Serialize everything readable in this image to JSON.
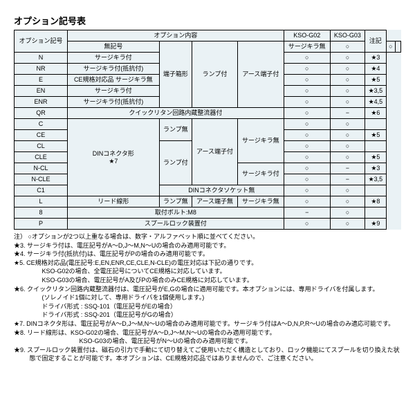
{
  "title": "オプション記号表",
  "headers": {
    "code": "オプション記号",
    "content": "オプション内容",
    "g02": "KSO-G02",
    "g03": "KSO-G03",
    "note": "注記"
  },
  "rows": [
    {
      "code": "無記号",
      "c1": "",
      "c2": "",
      "c3": "",
      "c4": "サージキラ無",
      "g02": "○",
      "g03": "○",
      "note": ""
    },
    {
      "code": "N",
      "c1": "端子箱形",
      "c2": "ランプ付",
      "c3": "アース端子付",
      "c4": "サージキラ付",
      "g02": "○",
      "g03": "○",
      "note": "★3"
    },
    {
      "code": "NR",
      "c1": "",
      "c2": "",
      "c3": "",
      "c4": "サージキラ付(抵抗付)",
      "g02": "○",
      "g03": "○",
      "note": "★4"
    },
    {
      "code": "E",
      "c1": "",
      "c2": "",
      "c3": "",
      "c4": "CE規格対応品 サージキラ無",
      "g02": "○",
      "g03": "○",
      "note": "★5"
    },
    {
      "code": "EN",
      "c1": "",
      "c2": "",
      "c3": "",
      "c4": "サージキラ付",
      "g02": "○",
      "g03": "○",
      "note": "★3,5"
    },
    {
      "code": "ENR",
      "c1": "",
      "c2": "",
      "c3": "",
      "c4": "サージキラ付(抵抗付)",
      "g02": "○",
      "g03": "○",
      "note": "★4,5"
    },
    {
      "code": "QR",
      "c1": "",
      "c2": "",
      "c3": "クイックリタン回路内蔵整流器付",
      "c4": "",
      "g02": "○",
      "g03": "−",
      "note": "★6"
    },
    {
      "code": "C",
      "c1": "DINコネクタ形\n★7",
      "c2": "ランプ無",
      "c3": "アース端子付",
      "c4": "サージキラ無",
      "g02": "○",
      "g03": "○",
      "note": ""
    },
    {
      "code": "CE",
      "c1": "",
      "c2": "",
      "c3": "",
      "c4": "CE規格対応品",
      "g02": "○",
      "g03": "○",
      "note": "★5"
    },
    {
      "code": "CL",
      "c1": "",
      "c2": "ランプ付",
      "c3": "",
      "c4": "",
      "g02": "○",
      "g03": "○",
      "note": ""
    },
    {
      "code": "CLE",
      "c1": "",
      "c2": "",
      "c3": "",
      "c4": "CE規格対応品",
      "g02": "○",
      "g03": "○",
      "note": "★5"
    },
    {
      "code": "N-CL",
      "c1": "",
      "c2": "",
      "c3": "",
      "c4": "サージキラ付",
      "g02": "○",
      "g03": "−",
      "note": "★3"
    },
    {
      "code": "N-CLE",
      "c1": "",
      "c2": "",
      "c3": "",
      "c4": "",
      "g02": "○",
      "g03": "−",
      "note": "★3,5"
    },
    {
      "code": "C1",
      "c1": "",
      "c2": "",
      "c3": "DINコネクタソケット無",
      "c4": "",
      "g02": "○",
      "g03": "○",
      "note": ""
    },
    {
      "code": "L",
      "c1": "リード線形",
      "c2": "ランプ無",
      "c3": "アース端子無",
      "c4": "サージキラ無",
      "g02": "○",
      "g03": "○",
      "note": "★8"
    },
    {
      "code": "8",
      "c1": "",
      "c2": "",
      "c3": "取付ボルト:M8",
      "c4": "",
      "g02": "−",
      "g03": "○",
      "note": ""
    },
    {
      "code": "P",
      "c1": "",
      "c2": "",
      "c3": "スプールロック装置付",
      "c4": "",
      "g02": "○",
      "g03": "○",
      "note": "★9"
    }
  ],
  "notes": [
    "注） ○オプションが2つ以上重なる場合は、数字・アルファベット順に並べてください。",
    "★3. サージキラ付は、電圧記号がA～D,J～M,N～Uの場合のみ適用可能です。",
    "★4. サージキラ付(抵抗付)は、電圧記号がPの場合のみ適用可能です。",
    "★5. CE規格対応品(電圧記号:E,EN,ENR,CE,CLE,N-CLE)の電圧対応は下記の通りです。\n　　KSO-G02の場合、全電圧記号についてCE規格に対応しています。\n　　KSO-G03の場合、電圧記号がA及びPの場合のみCE規格に対応しています。",
    "★6. クイックリタン回路内蔵整流器付は、電圧記号がE,Gの場合に適用可能です。本オプションには、専用ドライバを付属します。\n　　(ソレノイド1個に対して、専用ドライバを1個使用します。)\n　　ドライバ形式 : SSQ-101（電圧記号がEの場合）\n　　ドライバ形式 : SSQ-201（電圧記号がGの場合）",
    "★7. DINコネクタ形は、電圧記号がA～D,J～M,N～Uの場合のみ適用可能です。サージキラ付はA～D,N,P,R～Uの場合のみ適応可能です。",
    "★8. リード線形は、KSO-G02の場合、電圧記号がA～D,J～M,N～Uの場合のみ適用可能です。\n　　　　　　　　KSO-G03の場合、電圧記号がN～Uの場合のみ適用可能です。",
    "★9. スプールロック装置付は、磁石の引力で手動にて切り替えてご使用いただく構造としており、ロック機能にてスプールを切り換えた状態で固定することが可能です。本オプションは、CE規格対応品ではありませんので、ご注意ください。"
  ]
}
